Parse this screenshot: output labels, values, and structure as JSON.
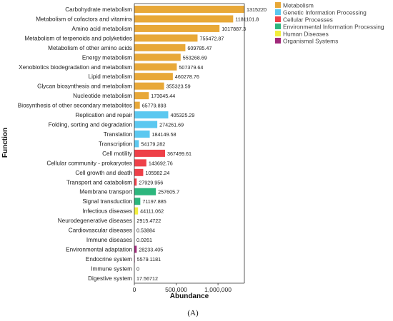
{
  "chart_data": {
    "type": "bar",
    "orientation": "horizontal",
    "xlabel": "Abundance",
    "ylabel": "Function",
    "xlim": [
      0,
      1315220
    ],
    "xticks": [
      0,
      500000,
      1000000
    ],
    "xtick_labels": [
      "0",
      "500,000",
      "1,000,000"
    ],
    "grid": false,
    "legend_position": "top-right",
    "panel_label": "(A)",
    "colors": {
      "Metabolism": "#E8A838",
      "Genetic Information Processing": "#5BC8F0",
      "Cellular Processes": "#EE4048",
      "Environmental Information Processing": "#2DB67D",
      "Human Diseases": "#F2EE3C",
      "Organismal Systems": "#A0287A"
    },
    "legend": [
      "Metabolism",
      "Genetic Information Processing",
      "Cellular Processes",
      "Environmental Information Processing",
      "Human Diseases",
      "Organismal Systems"
    ],
    "bars": [
      {
        "category": "Carbohydrate metabolism",
        "value": 1315220,
        "label": "1315220",
        "group": "Metabolism"
      },
      {
        "category": "Metabolism of cofactors and vitamins",
        "value": 1181101.8,
        "label": "1181101.8",
        "group": "Metabolism"
      },
      {
        "category": "Amino acid metabolism",
        "value": 1017887.3,
        "label": "1017887.3",
        "group": "Metabolism"
      },
      {
        "category": "Metabolism of terpenoids and polyketides",
        "value": 755472.87,
        "label": "755472.87",
        "group": "Metabolism"
      },
      {
        "category": "Metabolism of other amino acids",
        "value": 609785.47,
        "label": "609785.47",
        "group": "Metabolism"
      },
      {
        "category": "Energy metabolism",
        "value": 553268.69,
        "label": "553268.69",
        "group": "Metabolism"
      },
      {
        "category": "Xenobiotics biodegradation and metabolism",
        "value": 507379.64,
        "label": "507379.64",
        "group": "Metabolism"
      },
      {
        "category": "Lipid metabolism",
        "value": 460278.76,
        "label": "460278.76",
        "group": "Metabolism"
      },
      {
        "category": "Glycan biosynthesis and metabolism",
        "value": 355323.59,
        "label": "355323.59",
        "group": "Metabolism"
      },
      {
        "category": "Nucleotide metabolism",
        "value": 173045.44,
        "label": "173045.44",
        "group": "Metabolism"
      },
      {
        "category": "Biosynthesis of other secondary metabolites",
        "value": 65779.893,
        "label": "65779.893",
        "group": "Metabolism"
      },
      {
        "category": "Replication and repair",
        "value": 405325.29,
        "label": "405325.29",
        "group": "Genetic Information Processing"
      },
      {
        "category": "Folding, sorting and degradation",
        "value": 274261.69,
        "label": "274261.69",
        "group": "Genetic Information Processing"
      },
      {
        "category": "Translation",
        "value": 184149.58,
        "label": "184149.58",
        "group": "Genetic Information Processing"
      },
      {
        "category": "Transcription",
        "value": 54179.282,
        "label": "54179.282",
        "group": "Genetic Information Processing"
      },
      {
        "category": "Cell motility",
        "value": 367499.61,
        "label": "367499.61",
        "group": "Cellular Processes"
      },
      {
        "category": "Cellular community - prokaryotes",
        "value": 143692.76,
        "label": "143692.76",
        "group": "Cellular Processes"
      },
      {
        "category": "Cell growth and death",
        "value": 105982.24,
        "label": "105982.24",
        "group": "Cellular Processes"
      },
      {
        "category": "Transport and catabolism",
        "value": 27929.956,
        "label": "27929.956",
        "group": "Cellular Processes"
      },
      {
        "category": "Membrane transport",
        "value": 257605.7,
        "label": "257605.7",
        "group": "Environmental Information Processing"
      },
      {
        "category": "Signal transduction",
        "value": 71197.885,
        "label": "71197.885",
        "group": "Environmental Information Processing"
      },
      {
        "category": "Infectious diseases",
        "value": 44111.062,
        "label": "44111.062",
        "group": "Human Diseases"
      },
      {
        "category": "Neurodegenerative diseases",
        "value": 2915.4722,
        "label": "2915.4722",
        "group": "Human Diseases"
      },
      {
        "category": "Cardiovascular diseases",
        "value": 0.53884,
        "label": "0.53884",
        "group": "Human Diseases"
      },
      {
        "category": "Immune diseases",
        "value": 0.0261,
        "label": "0.0261",
        "group": "Human Diseases"
      },
      {
        "category": "Environmental adaptation",
        "value": 28233.405,
        "label": "28233.405",
        "group": "Organismal Systems"
      },
      {
        "category": "Endocrine system",
        "value": 5579.1181,
        "label": "5579.1181",
        "group": "Organismal Systems"
      },
      {
        "category": "Immune system",
        "value": 0,
        "label": "0",
        "group": "Organismal Systems"
      },
      {
        "category": "Digestive system",
        "value": 17.56712,
        "label": "17.56712",
        "group": "Organismal Systems"
      }
    ]
  }
}
